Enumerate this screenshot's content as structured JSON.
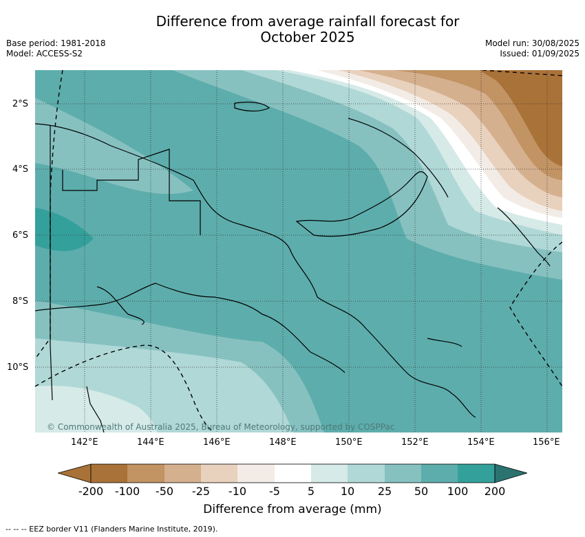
{
  "title_line1": "Difference from average rainfall forecast for",
  "title_line2": "October 2025",
  "base_period": "Base period: 1981-2018",
  "model": "Model: ACCESS-S2",
  "model_run": "Model run: 30/08/2025",
  "issued": "Issued: 01/09/2025",
  "lat_labels": [
    "2°S",
    "4°S",
    "6°S",
    "8°S",
    "10°S"
  ],
  "lon_labels": [
    "142°E",
    "144°E",
    "146°E",
    "148°E",
    "150°E",
    "152°E",
    "154°E",
    "156°E"
  ],
  "copyright": "© Commonwealth of Australia 2025, Bureau of Meteorology, supported by COSPPac",
  "colorbar": {
    "title": "Difference from average (mm)",
    "ticks": [
      "-200",
      "-100",
      "-50",
      "-25",
      "-10",
      "-5",
      "5",
      "10",
      "25",
      "50",
      "100",
      "200"
    ],
    "colors": [
      "#a97238",
      "#c29363",
      "#d5b08f",
      "#e8d1bd",
      "#f3ece6",
      "#ffffff",
      "#d6eae8",
      "#b0d8d7",
      "#86c1c0",
      "#5dadac",
      "#34a09b",
      "#2b7370"
    ]
  },
  "eez_note": "--  --  -- EEZ border V11 (Flanders Marine Institute, 2019)."
}
